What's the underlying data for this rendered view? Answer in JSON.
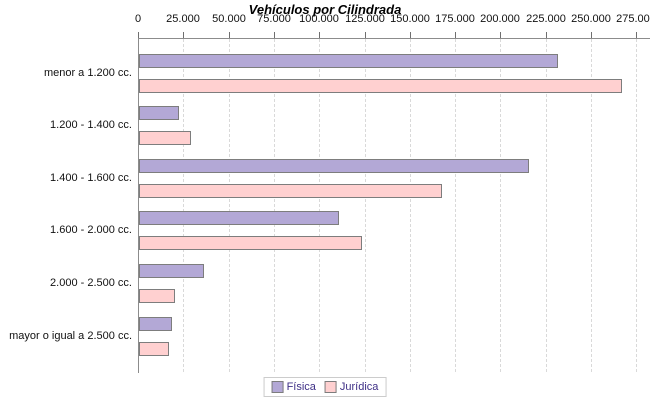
{
  "chart_data": {
    "type": "bar",
    "orientation": "horizontal",
    "title": "Vehículos por Cilindrada",
    "xlabel": "",
    "ylabel": "",
    "categories": [
      "menor a 1.200 cc.",
      "1.200 - 1.400 cc.",
      "1.400 - 1.600 cc.",
      "1.600 - 2.000 cc.",
      "2.000 - 2.500 cc.",
      "mayor o igual a 2.500 cc."
    ],
    "series": [
      {
        "name": "Física",
        "color": "#b3a8d6",
        "values": [
          230000,
          21000,
          214000,
          109500,
          34500,
          17000
        ]
      },
      {
        "name": "Jurídica",
        "color": "#ffd0d0",
        "values": [
          265500,
          27500,
          166000,
          122000,
          18500,
          15500
        ]
      }
    ],
    "x_axis": {
      "position": "top",
      "min": 0,
      "max": 275000,
      "tick_step": 25000,
      "tick_labels": [
        "0",
        "25.000",
        "50.000",
        "75.000",
        "100.000",
        "125.000",
        "150.000",
        "175.000",
        "200.000",
        "225.000",
        "250.000",
        "275.000"
      ]
    },
    "grid": "vertical-dashed",
    "legend_position": "bottom",
    "colors": {
      "axis_line": "#8c8c8c",
      "gridline": "#d9d9d9",
      "bar_border": "#7d7d7d",
      "legend_text": "#3e2f86",
      "title_text": "#000000"
    }
  }
}
